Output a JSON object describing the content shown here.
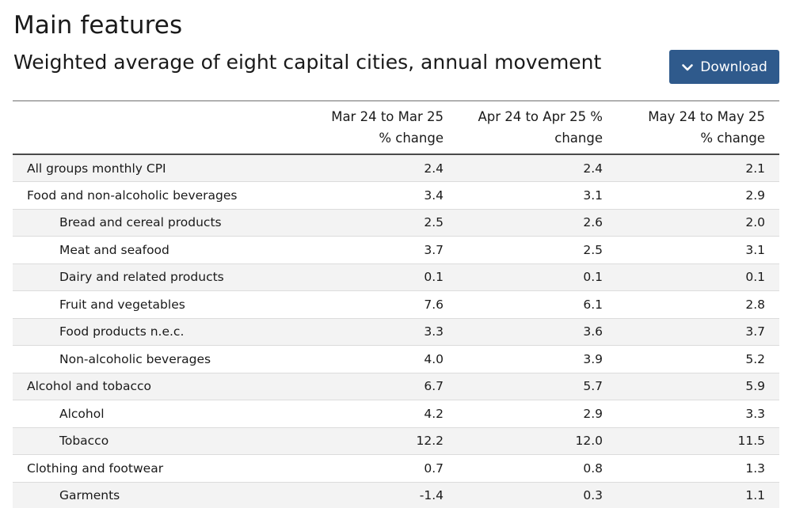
{
  "header": {
    "title": "Main features",
    "subtitle": "Weighted average of eight capital cities, annual movement",
    "download_label": "Download",
    "download_icon": "chevron-down-icon"
  },
  "colors": {
    "button_bg": "#2f5a8c",
    "row_alt_bg": "#f3f3f3"
  },
  "table": {
    "columns": [
      {
        "line1": "",
        "line2": ""
      },
      {
        "line1": "Mar 24 to Mar 25",
        "line2": "% change"
      },
      {
        "line1": "Apr 24 to Apr 25 %",
        "line2": "change"
      },
      {
        "line1": "May 24 to May 25",
        "line2": "% change"
      }
    ],
    "rows": [
      {
        "label": "All groups monthly CPI",
        "indent": false,
        "mar": "2.4",
        "apr": "2.4",
        "may": "2.1"
      },
      {
        "label": "Food and non-alcoholic beverages",
        "indent": false,
        "mar": "3.4",
        "apr": "3.1",
        "may": "2.9"
      },
      {
        "label": "Bread and cereal products",
        "indent": true,
        "mar": "2.5",
        "apr": "2.6",
        "may": "2.0"
      },
      {
        "label": "Meat and seafood",
        "indent": true,
        "mar": "3.7",
        "apr": "2.5",
        "may": "3.1"
      },
      {
        "label": "Dairy and related products",
        "indent": true,
        "mar": "0.1",
        "apr": "0.1",
        "may": "0.1"
      },
      {
        "label": "Fruit and vegetables",
        "indent": true,
        "mar": "7.6",
        "apr": "6.1",
        "may": "2.8"
      },
      {
        "label": "Food products n.e.c.",
        "indent": true,
        "mar": "3.3",
        "apr": "3.6",
        "may": "3.7"
      },
      {
        "label": "Non-alcoholic beverages",
        "indent": true,
        "mar": "4.0",
        "apr": "3.9",
        "may": "5.2"
      },
      {
        "label": "Alcohol and tobacco",
        "indent": false,
        "mar": "6.7",
        "apr": "5.7",
        "may": "5.9"
      },
      {
        "label": "Alcohol",
        "indent": true,
        "mar": "4.2",
        "apr": "2.9",
        "may": "3.3"
      },
      {
        "label": "Tobacco",
        "indent": true,
        "mar": "12.2",
        "apr": "12.0",
        "may": "11.5"
      },
      {
        "label": "Clothing and footwear",
        "indent": false,
        "mar": "0.7",
        "apr": "0.8",
        "may": "1.3"
      },
      {
        "label": "Garments",
        "indent": true,
        "mar": "-1.4",
        "apr": "0.3",
        "may": "1.1"
      }
    ]
  }
}
